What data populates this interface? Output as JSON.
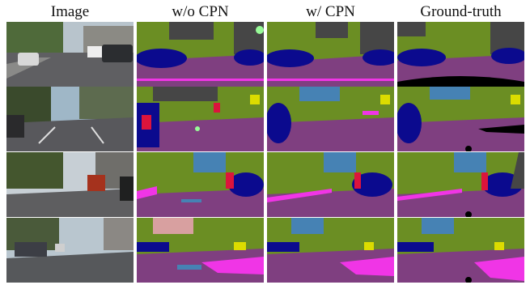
{
  "figure": {
    "columns": [
      "Image",
      "w/o CPN",
      "w/ CPN",
      "Ground-truth"
    ],
    "rows": 4
  },
  "palette": {
    "road": "#7f3f80",
    "sidewalk": "#f035e6",
    "car": "#0b0a8e",
    "vegetation": "#6b8e23",
    "sky": "#4682b4",
    "building": "#464646",
    "pole": "#999999",
    "traffic_sign": "#dcdc00",
    "person": "#dc143c",
    "terrain": "#98fb98",
    "void": "#000000"
  }
}
